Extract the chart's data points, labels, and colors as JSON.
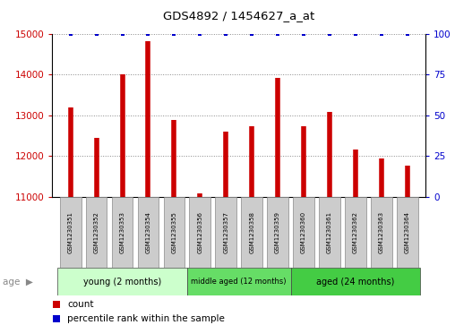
{
  "title": "GDS4892 / 1454627_a_at",
  "samples": [
    "GSM1230351",
    "GSM1230352",
    "GSM1230353",
    "GSM1230354",
    "GSM1230355",
    "GSM1230356",
    "GSM1230357",
    "GSM1230358",
    "GSM1230359",
    "GSM1230360",
    "GSM1230361",
    "GSM1230362",
    "GSM1230363",
    "GSM1230364"
  ],
  "counts": [
    13200,
    12450,
    14000,
    14820,
    12880,
    11080,
    12600,
    12730,
    13920,
    12730,
    13080,
    12150,
    11950,
    11760
  ],
  "percentile_ranks": [
    100,
    100,
    100,
    100,
    100,
    100,
    100,
    100,
    100,
    100,
    100,
    100,
    100,
    100
  ],
  "bar_color": "#cc0000",
  "dot_color": "#0000cc",
  "ylim_left": [
    11000,
    15000
  ],
  "ylim_right": [
    0,
    100
  ],
  "yticks_left": [
    11000,
    12000,
    13000,
    14000,
    15000
  ],
  "yticks_right": [
    0,
    25,
    50,
    75,
    100
  ],
  "groups": [
    {
      "label": "young (2 months)",
      "start": 0,
      "end": 5,
      "color": "#ccffcc"
    },
    {
      "label": "middle aged (12 months)",
      "start": 5,
      "end": 9,
      "color": "#66dd66"
    },
    {
      "label": "aged (24 months)",
      "start": 9,
      "end": 14,
      "color": "#44cc44"
    }
  ],
  "age_label": "age",
  "legend_items": [
    {
      "label": "count",
      "color": "#cc0000"
    },
    {
      "label": "percentile rank within the sample",
      "color": "#0000cc"
    }
  ],
  "background_color": "#ffffff",
  "grid_color": "#888888",
  "left_tick_color": "#cc0000",
  "right_tick_color": "#0000cc",
  "xtick_box_color": "#cccccc",
  "xtick_box_edge": "#888888"
}
